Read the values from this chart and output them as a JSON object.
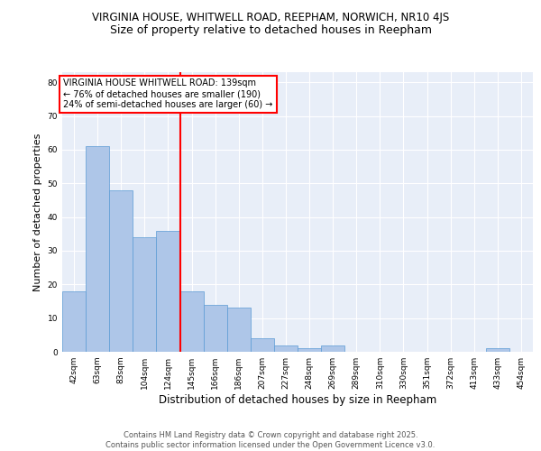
{
  "title1": "VIRGINIA HOUSE, WHITWELL ROAD, REEPHAM, NORWICH, NR10 4JS",
  "title2": "Size of property relative to detached houses in Reepham",
  "xlabel": "Distribution of detached houses by size in Reepham",
  "ylabel": "Number of detached properties",
  "categories": [
    "42sqm",
    "63sqm",
    "83sqm",
    "104sqm",
    "124sqm",
    "145sqm",
    "166sqm",
    "186sqm",
    "207sqm",
    "227sqm",
    "248sqm",
    "269sqm",
    "289sqm",
    "310sqm",
    "330sqm",
    "351sqm",
    "372sqm",
    "413sqm",
    "433sqm",
    "454sqm"
  ],
  "values": [
    18,
    61,
    48,
    34,
    36,
    18,
    14,
    13,
    4,
    2,
    1,
    2,
    0,
    0,
    0,
    0,
    0,
    0,
    1,
    0
  ],
  "bar_color": "#aec6e8",
  "bar_edge_color": "#5b9bd5",
  "vline_x_index": 4.5,
  "vline_color": "red",
  "annotation_text": "VIRGINIA HOUSE WHITWELL ROAD: 139sqm\n← 76% of detached houses are smaller (190)\n24% of semi-detached houses are larger (60) →",
  "annotation_box_color": "white",
  "annotation_box_edge": "red",
  "ylim": [
    0,
    83
  ],
  "yticks": [
    0,
    10,
    20,
    30,
    40,
    50,
    60,
    70,
    80
  ],
  "background_color": "#e8eef8",
  "footer_text": "Contains HM Land Registry data © Crown copyright and database right 2025.\nContains public sector information licensed under the Open Government Licence v3.0.",
  "title1_fontsize": 8.5,
  "title2_fontsize": 9,
  "xlabel_fontsize": 8.5,
  "ylabel_fontsize": 8,
  "tick_fontsize": 6.5,
  "annotation_fontsize": 7,
  "footer_fontsize": 6
}
